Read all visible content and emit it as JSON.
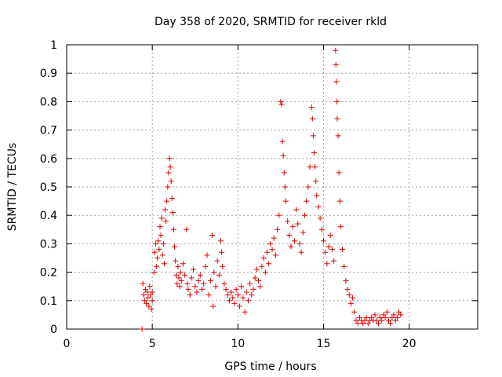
{
  "chart_data": {
    "type": "scatter",
    "title": "Day 358 of 2020, SRMTID for receiver rkld",
    "xlabel": "GPS time / hours",
    "ylabel": "SRMTID / TECUs",
    "xlim": [
      0,
      24
    ],
    "ylim": [
      0,
      1
    ],
    "xticks": [
      0,
      5,
      10,
      15,
      20
    ],
    "xtick_labels": [
      "0",
      "5",
      "10",
      "15",
      "20"
    ],
    "yticks": [
      0,
      0.1,
      0.2,
      0.3,
      0.4,
      0.5,
      0.6,
      0.7,
      0.8,
      0.9,
      1
    ],
    "ytick_labels": [
      "0",
      "0.1",
      "0.2",
      "0.3",
      "0.4",
      "0.5",
      "0.6",
      "0.7",
      "0.8",
      "0.9",
      "1"
    ],
    "grid": true,
    "marker": "plus",
    "color": "#e00000",
    "series": [
      {
        "name": "SRMTID",
        "points": [
          [
            4.4,
            0.0
          ],
          [
            4.45,
            0.16
          ],
          [
            4.5,
            0.12
          ],
          [
            4.55,
            0.1
          ],
          [
            4.6,
            0.14
          ],
          [
            4.65,
            0.09
          ],
          [
            4.7,
            0.13
          ],
          [
            4.75,
            0.11
          ],
          [
            4.8,
            0.08
          ],
          [
            4.85,
            0.15
          ],
          [
            4.9,
            0.12
          ],
          [
            4.95,
            0.07
          ],
          [
            5.0,
            0.1
          ],
          [
            5.0,
            0.13
          ],
          [
            5.1,
            0.2
          ],
          [
            5.15,
            0.27
          ],
          [
            5.2,
            0.3
          ],
          [
            5.25,
            0.22
          ],
          [
            5.3,
            0.25
          ],
          [
            5.35,
            0.31
          ],
          [
            5.4,
            0.28
          ],
          [
            5.45,
            0.36
          ],
          [
            5.5,
            0.33
          ],
          [
            5.55,
            0.39
          ],
          [
            5.6,
            0.26
          ],
          [
            5.65,
            0.3
          ],
          [
            5.7,
            0.23
          ],
          [
            5.75,
            0.42
          ],
          [
            5.8,
            0.38
          ],
          [
            5.85,
            0.45
          ],
          [
            5.9,
            0.5
          ],
          [
            5.95,
            0.55
          ],
          [
            6.0,
            0.6
          ],
          [
            6.05,
            0.57
          ],
          [
            6.1,
            0.52
          ],
          [
            6.15,
            0.46
          ],
          [
            6.2,
            0.41
          ],
          [
            6.25,
            0.35
          ],
          [
            6.3,
            0.29
          ],
          [
            6.35,
            0.24
          ],
          [
            6.4,
            0.19
          ],
          [
            6.45,
            0.16
          ],
          [
            6.5,
            0.22
          ],
          [
            6.55,
            0.18
          ],
          [
            6.6,
            0.15
          ],
          [
            6.65,
            0.2
          ],
          [
            6.7,
            0.17
          ],
          [
            6.8,
            0.23
          ],
          [
            6.9,
            0.19
          ],
          [
            7.0,
            0.35
          ],
          [
            7.05,
            0.16
          ],
          [
            7.1,
            0.14
          ],
          [
            7.2,
            0.12
          ],
          [
            7.3,
            0.18
          ],
          [
            7.4,
            0.21
          ],
          [
            7.5,
            0.15
          ],
          [
            7.6,
            0.13
          ],
          [
            7.7,
            0.17
          ],
          [
            7.8,
            0.19
          ],
          [
            7.9,
            0.14
          ],
          [
            8.0,
            0.16
          ],
          [
            8.1,
            0.22
          ],
          [
            8.2,
            0.26
          ],
          [
            8.3,
            0.12
          ],
          [
            8.4,
            0.17
          ],
          [
            8.5,
            0.33
          ],
          [
            8.55,
            0.08
          ],
          [
            8.6,
            0.2
          ],
          [
            8.7,
            0.15
          ],
          [
            8.8,
            0.24
          ],
          [
            8.9,
            0.19
          ],
          [
            9.0,
            0.31
          ],
          [
            9.05,
            0.27
          ],
          [
            9.1,
            0.22
          ],
          [
            9.2,
            0.16
          ],
          [
            9.3,
            0.14
          ],
          [
            9.4,
            0.12
          ],
          [
            9.5,
            0.1
          ],
          [
            9.6,
            0.13
          ],
          [
            9.7,
            0.11
          ],
          [
            9.8,
            0.09
          ],
          [
            9.9,
            0.14
          ],
          [
            10.0,
            0.12
          ],
          [
            10.1,
            0.08
          ],
          [
            10.2,
            0.15
          ],
          [
            10.3,
            0.11
          ],
          [
            10.4,
            0.06
          ],
          [
            10.5,
            0.13
          ],
          [
            10.6,
            0.1
          ],
          [
            10.7,
            0.16
          ],
          [
            10.8,
            0.12
          ],
          [
            10.9,
            0.14
          ],
          [
            11.0,
            0.18
          ],
          [
            11.1,
            0.21
          ],
          [
            11.2,
            0.17
          ],
          [
            11.3,
            0.15
          ],
          [
            11.4,
            0.22
          ],
          [
            11.5,
            0.25
          ],
          [
            11.6,
            0.2
          ],
          [
            11.7,
            0.27
          ],
          [
            11.8,
            0.23
          ],
          [
            11.9,
            0.3
          ],
          [
            12.0,
            0.28
          ],
          [
            12.1,
            0.32
          ],
          [
            12.2,
            0.26
          ],
          [
            12.3,
            0.35
          ],
          [
            12.4,
            0.4
          ],
          [
            12.5,
            0.8
          ],
          [
            12.55,
            0.79
          ],
          [
            12.6,
            0.66
          ],
          [
            12.65,
            0.61
          ],
          [
            12.7,
            0.55
          ],
          [
            12.75,
            0.5
          ],
          [
            12.8,
            0.45
          ],
          [
            12.9,
            0.38
          ],
          [
            13.0,
            0.33
          ],
          [
            13.1,
            0.29
          ],
          [
            13.2,
            0.36
          ],
          [
            13.3,
            0.31
          ],
          [
            13.4,
            0.42
          ],
          [
            13.5,
            0.37
          ],
          [
            13.6,
            0.3
          ],
          [
            13.7,
            0.27
          ],
          [
            13.8,
            0.34
          ],
          [
            13.9,
            0.4
          ],
          [
            14.0,
            0.45
          ],
          [
            14.1,
            0.5
          ],
          [
            14.2,
            0.57
          ],
          [
            14.3,
            0.78
          ],
          [
            14.35,
            0.74
          ],
          [
            14.4,
            0.68
          ],
          [
            14.45,
            0.62
          ],
          [
            14.5,
            0.57
          ],
          [
            14.55,
            0.52
          ],
          [
            14.6,
            0.47
          ],
          [
            14.7,
            0.43
          ],
          [
            14.8,
            0.39
          ],
          [
            14.9,
            0.35
          ],
          [
            15.0,
            0.31
          ],
          [
            15.1,
            0.27
          ],
          [
            15.2,
            0.23
          ],
          [
            15.3,
            0.29
          ],
          [
            15.4,
            0.33
          ],
          [
            15.5,
            0.28
          ],
          [
            15.6,
            0.24
          ],
          [
            15.7,
            0.98
          ],
          [
            15.72,
            0.93
          ],
          [
            15.75,
            0.87
          ],
          [
            15.78,
            0.8
          ],
          [
            15.8,
            0.74
          ],
          [
            15.85,
            0.68
          ],
          [
            15.9,
            0.55
          ],
          [
            15.95,
            0.45
          ],
          [
            16.0,
            0.36
          ],
          [
            16.1,
            0.28
          ],
          [
            16.2,
            0.22
          ],
          [
            16.3,
            0.17
          ],
          [
            16.4,
            0.14
          ],
          [
            16.5,
            0.12
          ],
          [
            16.6,
            0.09
          ],
          [
            16.7,
            0.11
          ],
          [
            16.8,
            0.06
          ],
          [
            16.9,
            0.03
          ],
          [
            17.0,
            0.02
          ],
          [
            17.1,
            0.04
          ],
          [
            17.2,
            0.03
          ],
          [
            17.3,
            0.02
          ],
          [
            17.4,
            0.03
          ],
          [
            17.5,
            0.04
          ],
          [
            17.6,
            0.02
          ],
          [
            17.7,
            0.03
          ],
          [
            17.8,
            0.04
          ],
          [
            17.9,
            0.03
          ],
          [
            18.0,
            0.05
          ],
          [
            18.1,
            0.03
          ],
          [
            18.2,
            0.02
          ],
          [
            18.3,
            0.04
          ],
          [
            18.4,
            0.03
          ],
          [
            18.5,
            0.05
          ],
          [
            18.6,
            0.04
          ],
          [
            18.7,
            0.06
          ],
          [
            18.8,
            0.03
          ],
          [
            18.9,
            0.02
          ],
          [
            19.0,
            0.04
          ],
          [
            19.1,
            0.05
          ],
          [
            19.2,
            0.03
          ],
          [
            19.3,
            0.04
          ],
          [
            19.4,
            0.06
          ],
          [
            19.5,
            0.05
          ]
        ]
      }
    ]
  }
}
